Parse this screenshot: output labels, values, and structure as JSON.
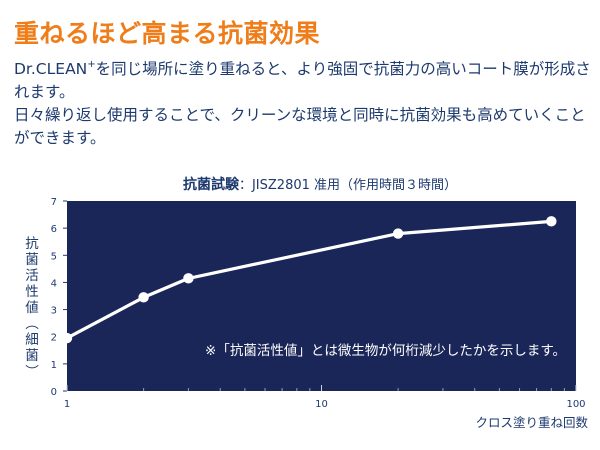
{
  "heading": "重ねるほど高まる抗菌効果",
  "body": {
    "brand": "Dr.CLEAN",
    "brand_sup": "+",
    "line1_rest": "を同じ場所に塗り重ねると、より強固で抗菌力の高いコート膜が形成されます。",
    "line2": "日々繰り返し使用することで、クリーンな環境と同時に抗菌効果も高めていくことができます。"
  },
  "chart_data": {
    "type": "line",
    "title_bold": "抗菌試験",
    "title_rest": "：JISZ2801 准用（作用時間３時間）",
    "xlabel": "クロス塗り重ね回数",
    "ylabel": "抗菌活性値（細菌）",
    "x_scale": "log",
    "xlim": [
      1,
      100
    ],
    "ylim": [
      0,
      7
    ],
    "x_ticks": [
      "1",
      "10",
      "100"
    ],
    "y_ticks": [
      "0",
      "1",
      "2",
      "3",
      "4",
      "5",
      "6",
      "7"
    ],
    "grid": false,
    "annotation": "※「抗菌活性値」とは微生物が何桁減少したかを示します。",
    "colors": {
      "background": "#1b2658",
      "line": "#ffffff",
      "text": "#1d3a6e",
      "accent": "#ef7d1a"
    },
    "series": [
      {
        "x": [
          1,
          2,
          3,
          20,
          80
        ],
        "y": [
          1.95,
          3.45,
          4.15,
          5.8,
          6.25
        ]
      }
    ]
  }
}
